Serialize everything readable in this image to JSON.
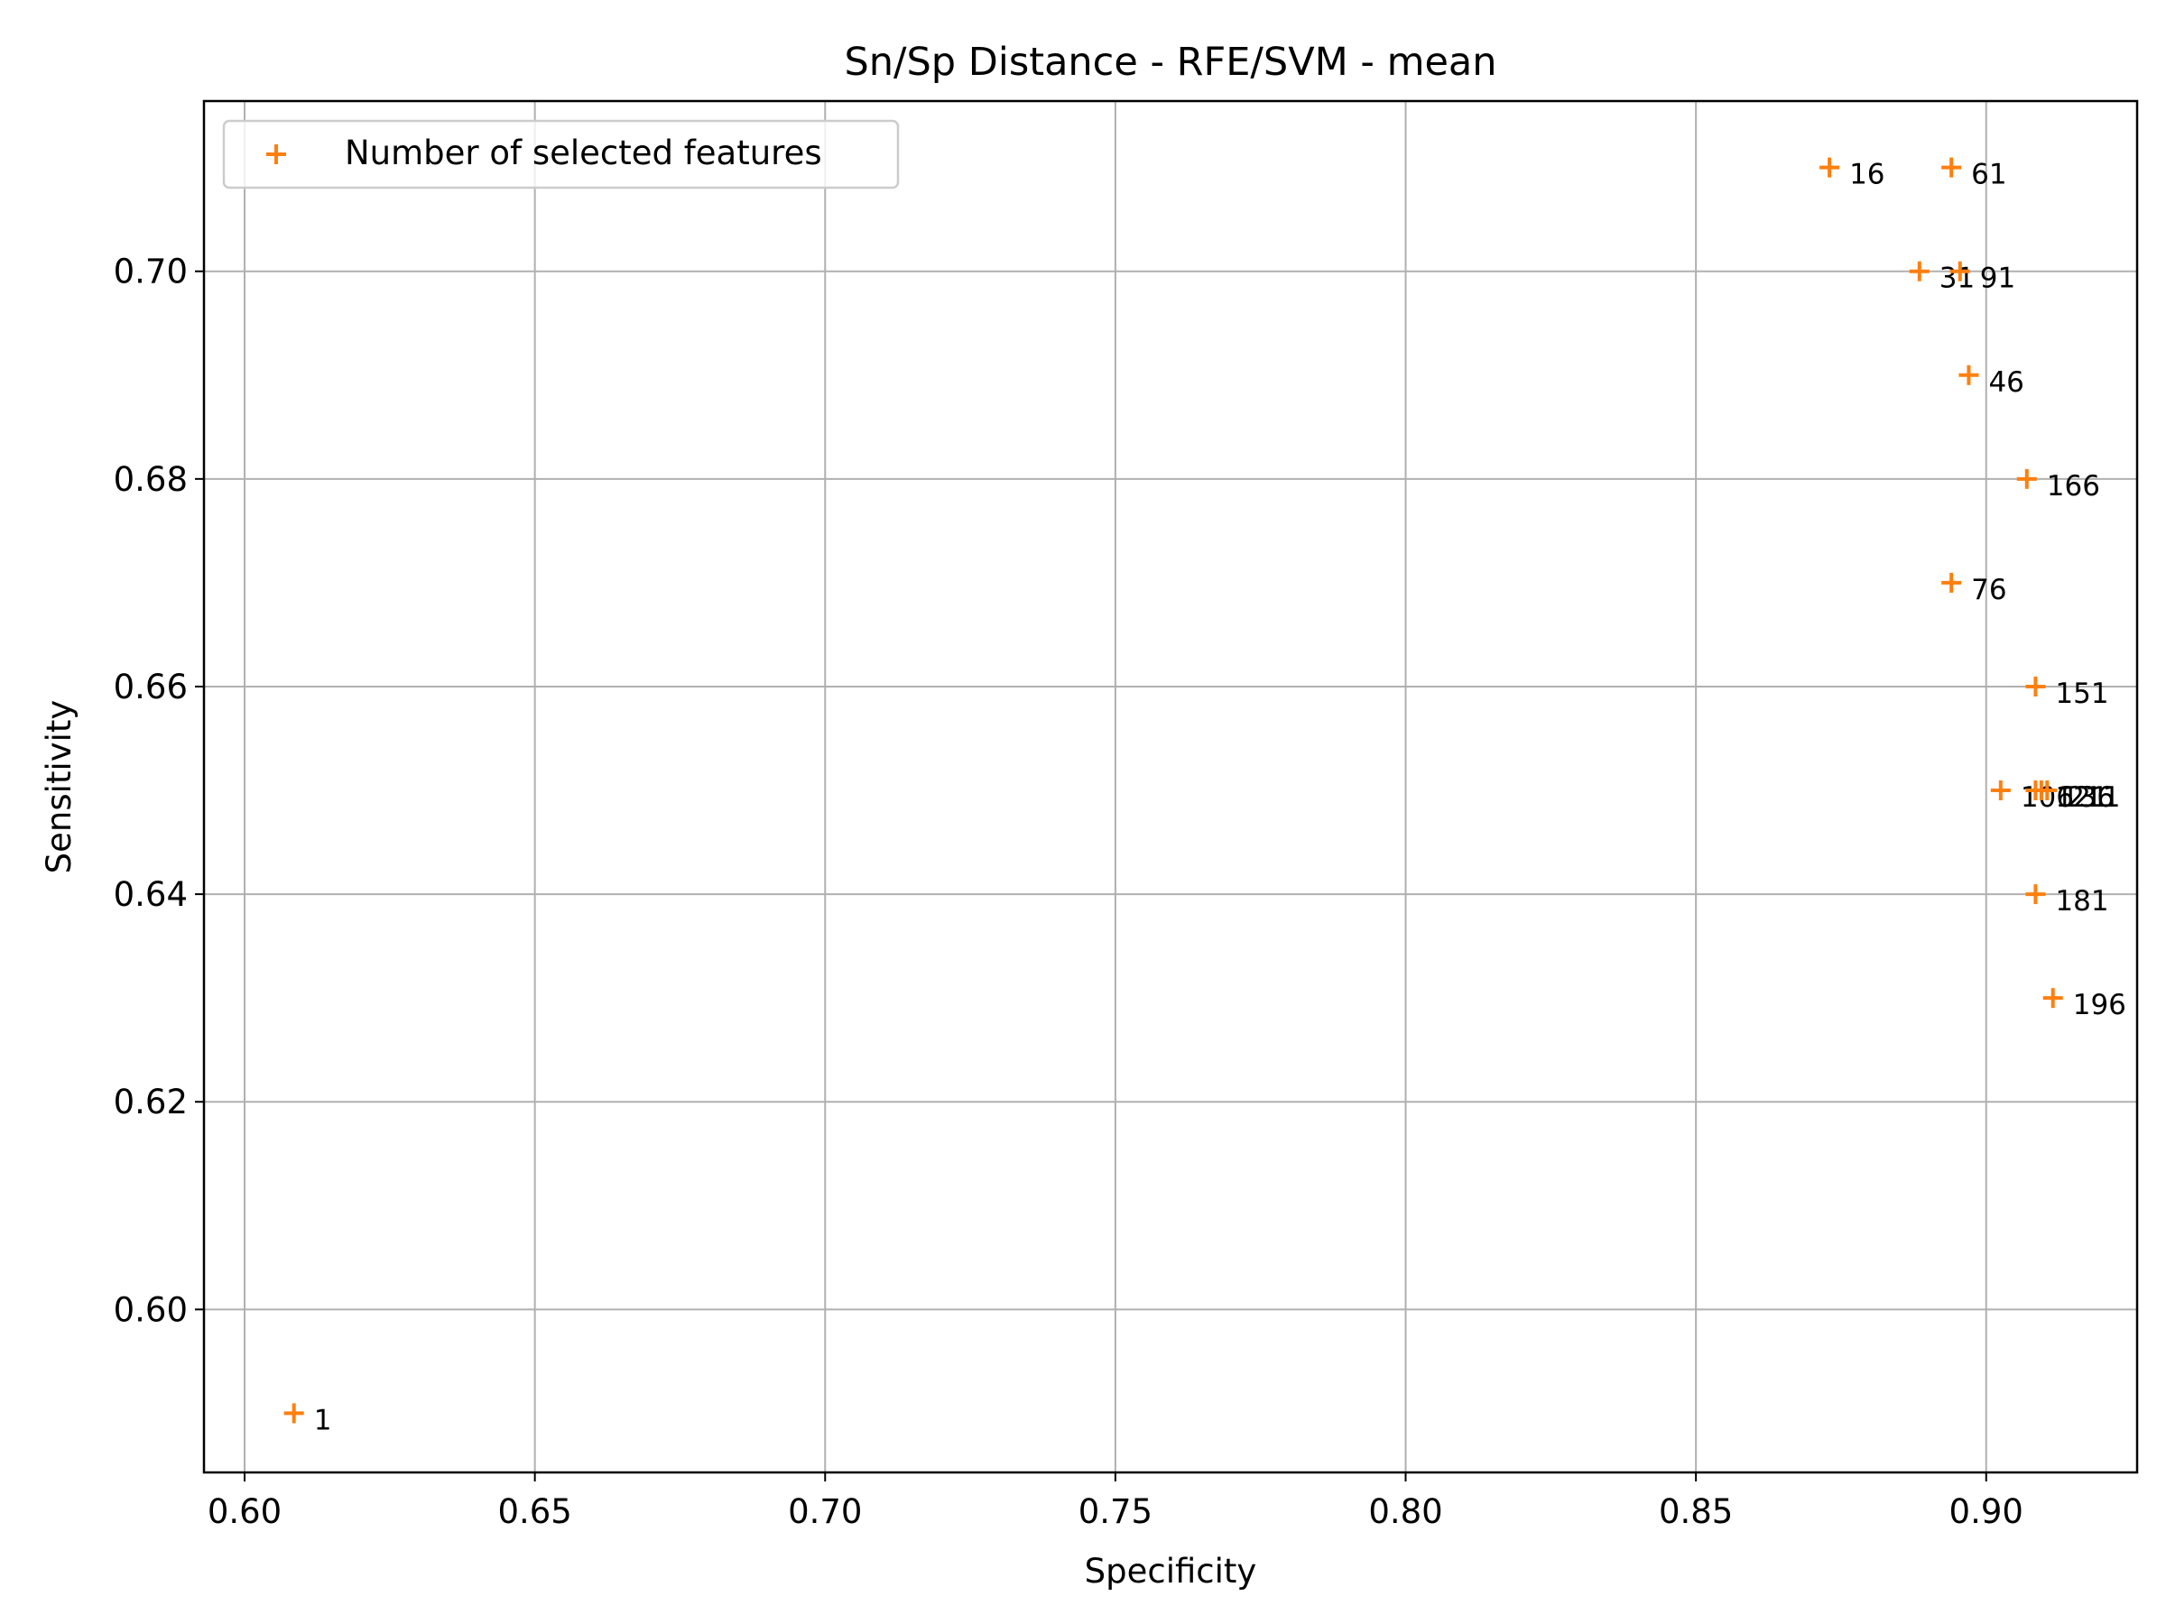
{
  "chart_data": {
    "type": "scatter",
    "title": "Sn/Sp Distance - RFE/SVM - mean",
    "xlabel": "Specificity",
    "ylabel": "Sensitivity",
    "xlim": [
      0.593,
      0.926
    ],
    "ylim": [
      0.5843,
      0.7164
    ],
    "xticks": [
      0.6,
      0.65,
      0.7,
      0.75,
      0.8,
      0.85,
      0.9
    ],
    "xtick_labels": [
      "0.60",
      "0.65",
      "0.70",
      "0.75",
      "0.80",
      "0.85",
      "0.90"
    ],
    "yticks": [
      0.6,
      0.62,
      0.64,
      0.66,
      0.68,
      0.7
    ],
    "ytick_labels": [
      "0.60",
      "0.62",
      "0.64",
      "0.66",
      "0.68",
      "0.70"
    ],
    "grid": true,
    "legend_position": "top-left",
    "marker": "+",
    "color": "#ff7f0e",
    "series": [
      {
        "name": "Number of selected features",
        "points": [
          {
            "x": 0.6085,
            "y": 0.59,
            "label": "1"
          },
          {
            "x": 0.873,
            "y": 0.71,
            "label": "16"
          },
          {
            "x": 0.894,
            "y": 0.71,
            "label": "61"
          },
          {
            "x": 0.8885,
            "y": 0.7,
            "label": "31"
          },
          {
            "x": 0.8955,
            "y": 0.7,
            "label": "91"
          },
          {
            "x": 0.897,
            "y": 0.69,
            "label": "46"
          },
          {
            "x": 0.907,
            "y": 0.68,
            "label": "166"
          },
          {
            "x": 0.894,
            "y": 0.67,
            "label": "76"
          },
          {
            "x": 0.9085,
            "y": 0.66,
            "label": "151"
          },
          {
            "x": 0.9025,
            "y": 0.65,
            "label": "106"
          },
          {
            "x": 0.9085,
            "y": 0.65,
            "label": "121"
          },
          {
            "x": 0.9095,
            "y": 0.65,
            "label": "136"
          },
          {
            "x": 0.9105,
            "y": 0.65,
            "label": "211"
          },
          {
            "x": 0.9085,
            "y": 0.64,
            "label": "181"
          },
          {
            "x": 0.9115,
            "y": 0.63,
            "label": "196"
          }
        ]
      }
    ]
  }
}
